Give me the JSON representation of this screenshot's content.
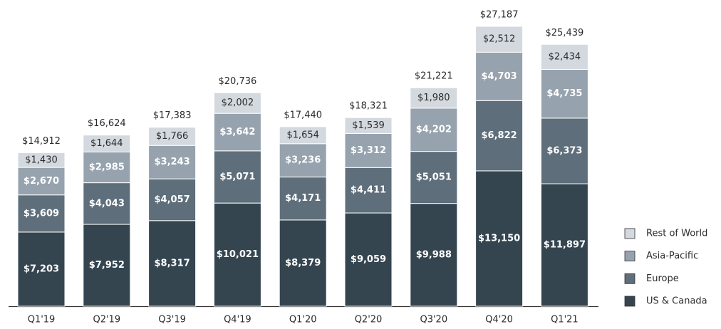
{
  "chart_data": {
    "type": "stacked-bar",
    "categories": [
      "Q1'19",
      "Q2'19",
      "Q3'19",
      "Q4'19",
      "Q1'20",
      "Q2'20",
      "Q3'20",
      "Q4'20",
      "Q1'21"
    ],
    "series": [
      {
        "name": "US & Canada",
        "color": "#344550",
        "label_color": "#ffffff",
        "values": [
          7203,
          7952,
          8317,
          10021,
          8379,
          9059,
          9988,
          13150,
          11897
        ],
        "value_labels": [
          "$7,203",
          "$7,952",
          "$8,317",
          "$10,021",
          "$8,379",
          "$9,059",
          "$9,988",
          "$13,150",
          "$11,897"
        ]
      },
      {
        "name": "Europe",
        "color": "#5e6e7b",
        "label_color": "#ffffff",
        "values": [
          3609,
          4043,
          4057,
          5071,
          4171,
          4411,
          5051,
          6822,
          6373
        ],
        "value_labels": [
          "$3,609",
          "$4,043",
          "$4,057",
          "$5,071",
          "$4,171",
          "$4,411",
          "$5,051",
          "$6,822",
          "$6,373"
        ]
      },
      {
        "name": "Asia-Pacific",
        "color": "#96a2ad",
        "label_color": "#ffffff",
        "values": [
          2670,
          2985,
          3243,
          3642,
          3236,
          3312,
          4202,
          4703,
          4735
        ],
        "value_labels": [
          "$2,670",
          "$2,985",
          "$3,243",
          "$3,642",
          "$3,236",
          "$3,312",
          "$4,202",
          "$4,703",
          "$4,735"
        ]
      },
      {
        "name": "Rest of World",
        "color": "#d3d9de",
        "label_color": "#2b2b2b",
        "values": [
          1430,
          1644,
          1766,
          2002,
          1654,
          1539,
          1980,
          2512,
          2434
        ],
        "value_labels": [
          "$1,430",
          "$1,644",
          "$1,766",
          "$2,002",
          "$1,654",
          "$1,539",
          "$1,980",
          "$2,512",
          "$2,434"
        ]
      }
    ],
    "totals": {
      "values": [
        14912,
        16624,
        17383,
        20736,
        17440,
        18321,
        21221,
        27187,
        25439
      ],
      "value_labels": [
        "$14,912",
        "$16,624",
        "$17,383",
        "$20,736",
        "$17,440",
        "$18,321",
        "$21,221",
        "$27,187",
        "$25,439"
      ]
    },
    "legend": "bottom-right"
  }
}
